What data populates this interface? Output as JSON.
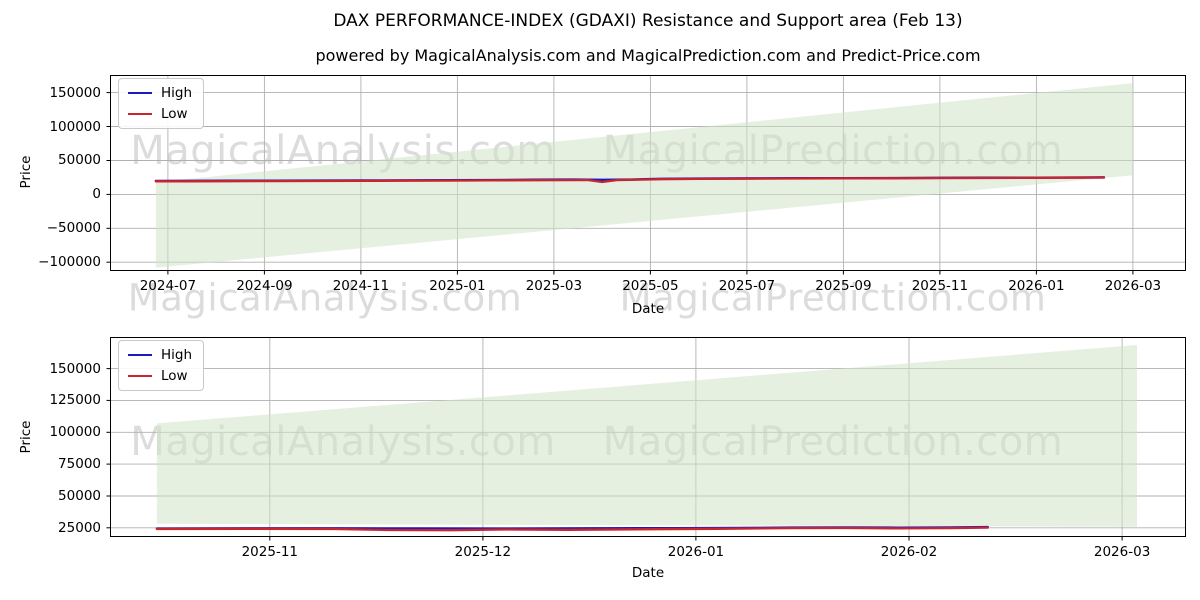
{
  "title": "DAX PERFORMANCE-INDEX (GDAXI) Resistance and Support area (Feb 13)",
  "subtitle": "powered by MagicalAnalysis.com and MagicalPrediction.com and Predict-Price.com",
  "watermarks": {
    "left": "MagicalAnalysis.com",
    "right": "MagicalPrediction.com"
  },
  "colors": {
    "high": "#1a1ac0",
    "low": "#c9252d",
    "band": "#cfe3c9",
    "grid": "#b0b0b0",
    "spine": "#000000",
    "watermark": "#dcdcdc",
    "background": "#ffffff"
  },
  "chart_data": [
    {
      "type": "line",
      "name": "full-history",
      "xlabel": "Date",
      "ylabel": "Price",
      "x_unit": "months since 2024-06-01",
      "xlim": [
        -0.2,
        22.1
      ],
      "ylim": [
        -113000,
        176000
      ],
      "grid": true,
      "legend_position": "upper-left",
      "x_ticks": [
        {
          "pos": 1,
          "label": "2024-07"
        },
        {
          "pos": 3,
          "label": "2024-09"
        },
        {
          "pos": 5,
          "label": "2024-11"
        },
        {
          "pos": 7,
          "label": "2025-01"
        },
        {
          "pos": 9,
          "label": "2025-03"
        },
        {
          "pos": 11,
          "label": "2025-05"
        },
        {
          "pos": 13,
          "label": "2025-07"
        },
        {
          "pos": 15,
          "label": "2025-09"
        },
        {
          "pos": 17,
          "label": "2025-11"
        },
        {
          "pos": 19,
          "label": "2026-01"
        },
        {
          "pos": 21,
          "label": "2026-03"
        }
      ],
      "y_ticks": [
        {
          "pos": 150000,
          "label": "150000"
        },
        {
          "pos": 100000,
          "label": "100000"
        },
        {
          "pos": 50000,
          "label": "50000"
        },
        {
          "pos": 0,
          "label": "0"
        },
        {
          "pos": -50000,
          "label": "−50000"
        },
        {
          "pos": -100000,
          "label": "−100000"
        }
      ],
      "band": {
        "label": "Resistance and Support area",
        "points": [
          [
            0.75,
            17800
          ],
          [
            21.0,
            164000
          ],
          [
            21.0,
            28100
          ],
          [
            0.75,
            -108000
          ]
        ]
      },
      "series": [
        {
          "name": "High",
          "color_key": "high",
          "points": [
            [
              0.75,
              19900
            ],
            [
              1.5,
              20000
            ],
            [
              2.3,
              20100
            ],
            [
              3.2,
              20250
            ],
            [
              4.1,
              20400
            ],
            [
              5.0,
              20550
            ],
            [
              5.9,
              20750
            ],
            [
              6.8,
              21000
            ],
            [
              7.7,
              21250
            ],
            [
              8.6,
              21550
            ],
            [
              9.4,
              21850
            ],
            [
              10.0,
              21400
            ],
            [
              10.6,
              21900
            ],
            [
              11.2,
              22900
            ],
            [
              12.0,
              23400
            ],
            [
              13.0,
              23700
            ],
            [
              14.0,
              23900
            ],
            [
              15.0,
              24050
            ],
            [
              16.0,
              24200
            ],
            [
              17.0,
              24400
            ],
            [
              18.0,
              24600
            ],
            [
              19.0,
              24750
            ],
            [
              20.0,
              25000
            ],
            [
              20.4,
              25100
            ]
          ]
        },
        {
          "name": "Low",
          "color_key": "low",
          "points": [
            [
              0.75,
              19200
            ],
            [
              1.5,
              19300
            ],
            [
              2.3,
              19450
            ],
            [
              3.2,
              19600
            ],
            [
              4.1,
              19750
            ],
            [
              5.0,
              19900
            ],
            [
              5.9,
              20100
            ],
            [
              6.8,
              20350
            ],
            [
              7.7,
              20600
            ],
            [
              8.6,
              20900
            ],
            [
              9.4,
              21100
            ],
            [
              9.7,
              21200
            ],
            [
              10.0,
              18200
            ],
            [
              10.3,
              21050
            ],
            [
              11.2,
              22300
            ],
            [
              12.0,
              22800
            ],
            [
              13.0,
              23100
            ],
            [
              14.0,
              23350
            ],
            [
              15.0,
              23550
            ],
            [
              16.0,
              23750
            ],
            [
              17.0,
              23950
            ],
            [
              18.0,
              24150
            ],
            [
              19.0,
              24350
            ],
            [
              20.0,
              24600
            ],
            [
              20.4,
              24700
            ]
          ]
        }
      ]
    },
    {
      "type": "line",
      "name": "recent-zoom",
      "xlabel": "Date",
      "ylabel": "Price",
      "x_unit": "months since 2025-10-01",
      "xlim": [
        0.25,
        5.3
      ],
      "ylim": [
        17800,
        174800
      ],
      "grid": true,
      "legend_position": "upper-left",
      "x_ticks": [
        {
          "pos": 1,
          "label": "2025-11"
        },
        {
          "pos": 2,
          "label": "2025-12"
        },
        {
          "pos": 3,
          "label": "2026-01"
        },
        {
          "pos": 4,
          "label": "2026-02"
        },
        {
          "pos": 5,
          "label": "2026-03"
        }
      ],
      "y_ticks": [
        {
          "pos": 150000,
          "label": "150000"
        },
        {
          "pos": 125000,
          "label": "125000"
        },
        {
          "pos": 100000,
          "label": "100000"
        },
        {
          "pos": 75000,
          "label": "75000"
        },
        {
          "pos": 50000,
          "label": "50000"
        },
        {
          "pos": 25000,
          "label": "25000"
        }
      ],
      "band": {
        "label": "Resistance and Support area",
        "points": [
          [
            0.47,
            107000
          ],
          [
            5.07,
            168500
          ],
          [
            5.07,
            25800
          ],
          [
            0.47,
            28200
          ]
        ]
      },
      "series": [
        {
          "name": "High",
          "color_key": "high",
          "points": [
            [
              0.47,
              24500
            ],
            [
              0.9,
              24600
            ],
            [
              1.3,
              24650
            ],
            [
              1.7,
              24550
            ],
            [
              2.1,
              24500
            ],
            [
              2.5,
              24600
            ],
            [
              2.9,
              24750
            ],
            [
              3.2,
              24950
            ],
            [
              3.45,
              25250
            ],
            [
              3.7,
              25350
            ],
            [
              3.95,
              25150
            ],
            [
              4.2,
              25300
            ],
            [
              4.37,
              25650
            ]
          ]
        },
        {
          "name": "Low",
          "color_key": "low",
          "points": [
            [
              0.47,
              24100
            ],
            [
              0.9,
              24200
            ],
            [
              1.3,
              24050
            ],
            [
              1.55,
              23300
            ],
            [
              1.85,
              23150
            ],
            [
              2.1,
              23650
            ],
            [
              2.4,
              23450
            ],
            [
              2.8,
              23900
            ],
            [
              3.1,
              24250
            ],
            [
              3.45,
              24750
            ],
            [
              3.7,
              24850
            ],
            [
              3.95,
              24550
            ],
            [
              4.2,
              24750
            ],
            [
              4.37,
              25150
            ]
          ]
        }
      ]
    }
  ]
}
